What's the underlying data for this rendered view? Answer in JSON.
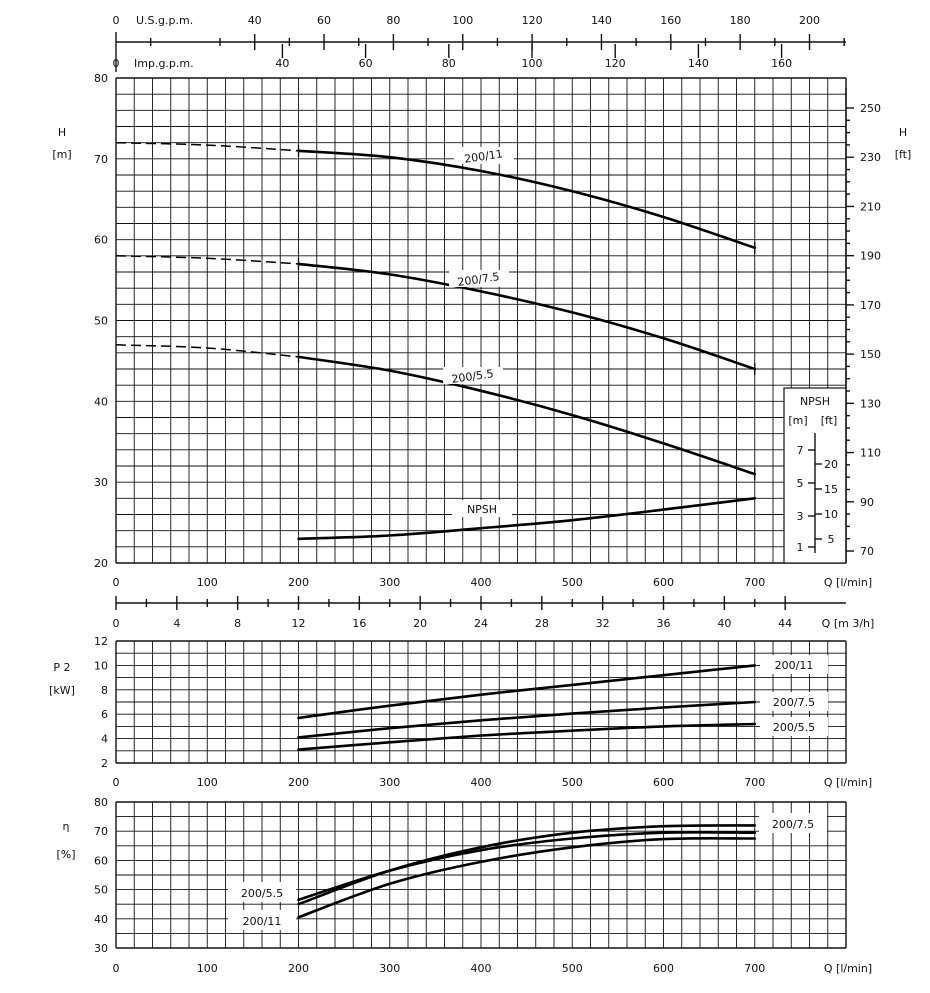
{
  "chart_data": [
    {
      "id": "head",
      "type": "line",
      "ylabel": "H",
      "yunit": "[m]",
      "ylim": [
        20,
        80
      ],
      "yticks": [
        20,
        30,
        40,
        50,
        60,
        70,
        80
      ],
      "y2label": "H",
      "y2unit": "[ft]",
      "y2ticks": [
        70,
        90,
        110,
        130,
        150,
        170,
        190,
        210,
        230,
        250
      ],
      "xlim": [
        0,
        800
      ],
      "xticks": [
        0,
        100,
        200,
        300,
        400,
        500,
        600,
        700
      ],
      "xlabel": "Q  [l/min]",
      "top_axes": [
        {
          "name": "us-gpm",
          "label": "U.S.g.p.m.",
          "first_tick": "0",
          "ticks": [
            40,
            60,
            80,
            100,
            120,
            140,
            160,
            180,
            200
          ]
        },
        {
          "name": "imp-gpm",
          "label": "Imp.g.p.m.",
          "first_tick": "0",
          "ticks": [
            40,
            60,
            80,
            100,
            120,
            140,
            160
          ]
        }
      ],
      "series": [
        {
          "name": "200/11",
          "x": [
            200,
            300,
            400,
            500,
            600,
            700
          ],
          "y": [
            71,
            70.2,
            68.5,
            66,
            62.8,
            59
          ],
          "dashed_x": [
            0,
            100,
            200
          ],
          "dashed_y": [
            72,
            71.7,
            71
          ]
        },
        {
          "name": "200/7.5",
          "x": [
            200,
            300,
            400,
            500,
            600,
            700
          ],
          "y": [
            57,
            55.7,
            53.6,
            51,
            47.8,
            44
          ],
          "dashed_x": [
            0,
            100,
            200
          ],
          "dashed_y": [
            58,
            57.7,
            57
          ]
        },
        {
          "name": "200/5.5",
          "x": [
            200,
            300,
            400,
            500,
            600,
            700
          ],
          "y": [
            45.5,
            43.8,
            41.3,
            38.3,
            34.8,
            31
          ],
          "dashed_x": [
            0,
            100,
            200
          ],
          "dashed_y": [
            47,
            46.6,
            45.5
          ]
        },
        {
          "name": "NPSH",
          "x": [
            200,
            300,
            400,
            500,
            600,
            700
          ],
          "y": [
            23,
            23.4,
            24.3,
            25.3,
            26.6,
            28
          ]
        }
      ],
      "npsh_box": {
        "title": "NPSH",
        "units_m": "[m]",
        "units_ft": "[ft]",
        "m_ticks": [
          "7",
          "5",
          "3",
          "1"
        ],
        "ft_ticks": [
          "20",
          "15",
          "10",
          "5"
        ]
      }
    },
    {
      "id": "flow-m3h",
      "type": "axis",
      "xlabel": "Q  [m 3/h]",
      "ticks": [
        0,
        4,
        8,
        12,
        16,
        20,
        24,
        28,
        32,
        36,
        40,
        44
      ]
    },
    {
      "id": "power",
      "type": "line",
      "ylabel": "P 2",
      "yunit": "[kW]",
      "ylim": [
        2,
        12
      ],
      "yticks": [
        2,
        4,
        6,
        8,
        10,
        12
      ],
      "xlim": [
        0,
        800
      ],
      "xticks": [
        0,
        100,
        200,
        300,
        400,
        500,
        600,
        700
      ],
      "xlabel": "Q  [l/min]",
      "series": [
        {
          "name": "200/11",
          "x": [
            200,
            300,
            400,
            500,
            600,
            700
          ],
          "y": [
            5.7,
            6.7,
            7.6,
            8.4,
            9.2,
            10
          ]
        },
        {
          "name": "200/7.5",
          "x": [
            200,
            300,
            400,
            500,
            600,
            700
          ],
          "y": [
            4.1,
            4.85,
            5.5,
            6.05,
            6.55,
            7
          ]
        },
        {
          "name": "200/5.5",
          "x": [
            200,
            300,
            400,
            500,
            600,
            700
          ],
          "y": [
            3.1,
            3.7,
            4.25,
            4.65,
            5.0,
            5.2
          ]
        }
      ]
    },
    {
      "id": "efficiency",
      "type": "line",
      "ylabel": "η",
      "yunit": "[%]",
      "ylim": [
        30,
        80
      ],
      "yticks": [
        30,
        40,
        50,
        60,
        70,
        80
      ],
      "xlim": [
        0,
        800
      ],
      "xticks": [
        0,
        100,
        200,
        300,
        400,
        500,
        600,
        700
      ],
      "xlabel": "Q  [l/min]",
      "series": [
        {
          "name": "200/7.5",
          "x": [
            200,
            300,
            400,
            500,
            600,
            700
          ],
          "y": [
            45,
            56.5,
            64.5,
            69.5,
            71.7,
            72
          ]
        },
        {
          "name": "200/5.5",
          "x": [
            200,
            300,
            400,
            500,
            600,
            700
          ],
          "y": [
            46.5,
            56.5,
            63.5,
            67.5,
            69.5,
            69.5
          ]
        },
        {
          "name": "200/11",
          "x": [
            200,
            300,
            400,
            500,
            600,
            700
          ],
          "y": [
            40.5,
            52,
            59.5,
            64.5,
            67.3,
            67.5
          ]
        }
      ]
    }
  ]
}
